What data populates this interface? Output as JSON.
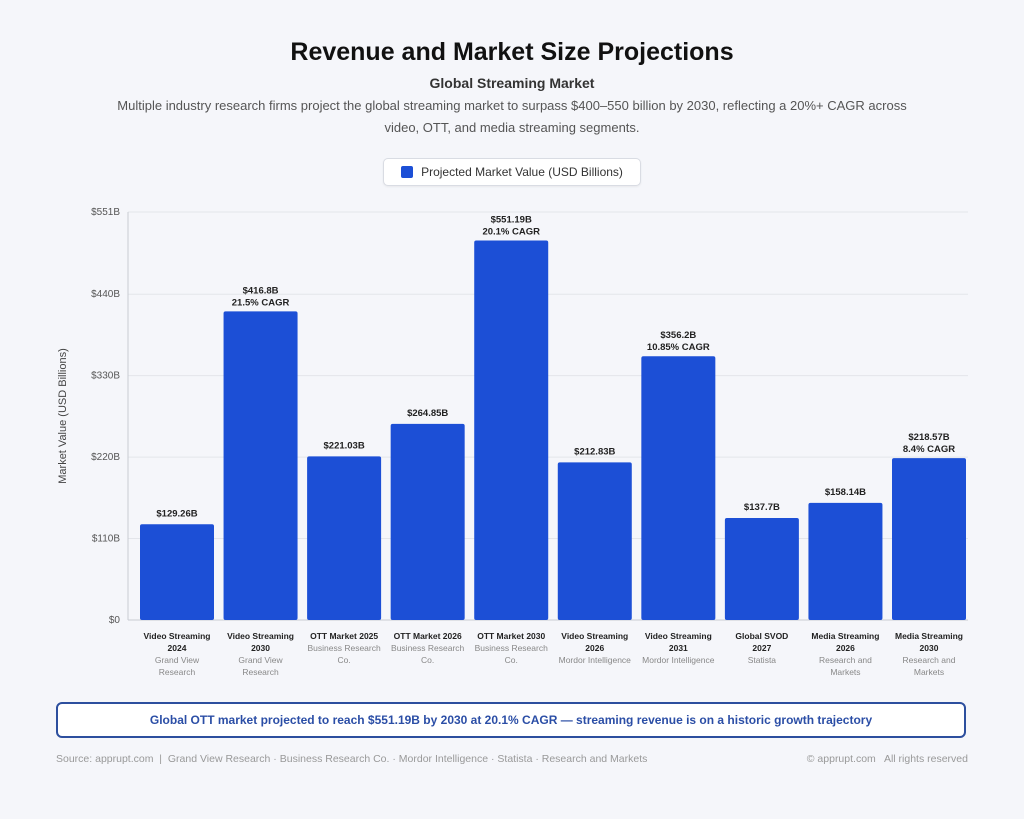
{
  "header": {
    "title": "Revenue and Market Size Projections",
    "subtitle": "Global Streaming Market",
    "description": "Multiple industry research firms project the global streaming market to surpass $400–550 billion by 2030, reflecting a 20%+ CAGR across video, OTT, and media streaming segments."
  },
  "colors": {
    "bar": "#1c4fd6",
    "callout_border": "#2d4f9e",
    "callout_text": "#2b4ea6"
  },
  "chart_data": {
    "type": "bar",
    "title": "Revenue and Market Size Projections",
    "subtitle": "Global Streaming Market",
    "xlabel": "",
    "ylabel": "Market Value (USD Billions)",
    "ylim": [
      0,
      551
    ],
    "yticks": [
      0,
      110,
      220,
      330,
      440,
      551
    ],
    "ytick_labels": [
      "$0",
      "$110B",
      "$220B",
      "$330B",
      "$440B",
      "$551B"
    ],
    "grid": true,
    "legend": {
      "placement": "top-center",
      "entries": [
        "Projected Market Value (USD Billions)"
      ]
    },
    "categories": [
      "Video Streaming 2024",
      "Video Streaming 2030",
      "OTT Market 2025",
      "OTT Market 2026",
      "OTT Market 2030",
      "Video Streaming 2026",
      "Video Streaming 2031",
      "Global SVOD 2027",
      "Media Streaming 2026",
      "Media Streaming 2030"
    ],
    "sources": [
      "Grand View Research",
      "Grand View Research",
      "Business Research Co.",
      "Business Research Co.",
      "Business Research Co.",
      "Mordor Intelligence",
      "Mordor Intelligence",
      "Statista",
      "Research and Markets",
      "Research and Markets"
    ],
    "series": [
      {
        "name": "Projected Market Value (USD Billions)",
        "values": [
          129.26,
          416.8,
          221.03,
          264.85,
          551.19,
          212.83,
          356.2,
          137.7,
          158.14,
          218.57
        ]
      }
    ],
    "value_labels": [
      "$129.26B",
      "$416.8B",
      "$221.03B",
      "$264.85B",
      "$551.19B",
      "$212.83B",
      "$356.2B",
      "$137.7B",
      "$158.14B",
      "$218.57B"
    ],
    "cagr_labels": [
      "",
      "21.5% CAGR",
      "",
      "",
      "20.1% CAGR",
      "",
      "10.85% CAGR",
      "",
      "",
      "8.4% CAGR"
    ]
  },
  "category_labels": [
    {
      "line1": "Video Streaming",
      "line2": "2024",
      "src1": "Grand View",
      "src2": "Research"
    },
    {
      "line1": "Video Streaming",
      "line2": "2030",
      "src1": "Grand View",
      "src2": "Research"
    },
    {
      "line1": "OTT Market 2025",
      "line2": "",
      "src1": "Business Research",
      "src2": "Co."
    },
    {
      "line1": "OTT Market 2026",
      "line2": "",
      "src1": "Business Research",
      "src2": "Co."
    },
    {
      "line1": "OTT Market 2030",
      "line2": "",
      "src1": "Business Research",
      "src2": "Co."
    },
    {
      "line1": "Video Streaming",
      "line2": "2026",
      "src1": "Mordor Intelligence",
      "src2": ""
    },
    {
      "line1": "Video Streaming",
      "line2": "2031",
      "src1": "Mordor Intelligence",
      "src2": ""
    },
    {
      "line1": "Global SVOD",
      "line2": "2027",
      "src1": "Statista",
      "src2": ""
    },
    {
      "line1": "Media Streaming",
      "line2": "2026",
      "src1": "Research and",
      "src2": "Markets"
    },
    {
      "line1": "Media Streaming",
      "line2": "2030",
      "src1": "Research and",
      "src2": "Markets"
    }
  ],
  "legend": {
    "label": "Projected Market Value (USD Billions)"
  },
  "callout": {
    "text": "Global OTT market projected to reach $551.19B by 2030 at 20.1% CAGR — streaming revenue is on a historic growth trajectory"
  },
  "footer": {
    "source": "Source: apprupt.com  |  Grand View Research · Business Research Co. · Mordor Intelligence · Statista · Research and Markets",
    "copyright": "© apprupt.com   All rights reserved"
  }
}
